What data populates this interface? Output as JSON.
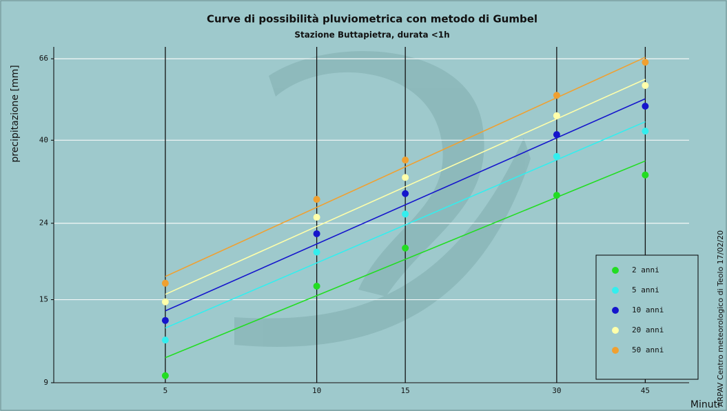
{
  "chart_data": {
    "type": "scatter",
    "title": "Curve di possibilità pluviometrica con metodo di Gumbel",
    "subtitle": "Stazione Buttapietra, durata <1h",
    "y_label": "precipitazione [mm]",
    "x_label": "Minuti",
    "credit": "ARPAV Centro meteorologico di Teolo 17/02/20",
    "x": [
      5,
      10,
      15,
      30,
      45
    ],
    "xscale": "log",
    "yscale": "log",
    "xlim": [
      3,
      55
    ],
    "ylim": [
      9,
      71
    ],
    "xticks": [
      5,
      10,
      15,
      30,
      45
    ],
    "yticks": [
      9,
      15,
      24,
      40,
      66
    ],
    "grid": true,
    "legend": "lower-right",
    "series": [
      {
        "name": "2 anni",
        "color": "#22dd22",
        "values": [
          9.4,
          16.3,
          20.6,
          28.5,
          32.3
        ],
        "trend": {
          "x": [
            5,
            45
          ],
          "values": [
            10.5,
            35.2
          ]
        }
      },
      {
        "name": "5 anni",
        "color": "#33eeee",
        "values": [
          11.7,
          20.1,
          25.4,
          36.2,
          42.3
        ],
        "trend": {
          "x": [
            5,
            45
          ],
          "values": [
            12.6,
            44.8
          ]
        }
      },
      {
        "name": "10 anni",
        "color": "#1515cc",
        "values": [
          13.2,
          22.5,
          28.8,
          41.4,
          49.3
        ],
        "trend": {
          "x": [
            5,
            45
          ],
          "values": [
            14.0,
            51.6
          ]
        }
      },
      {
        "name": "20 anni",
        "color": "#ffffaa",
        "values": [
          14.8,
          24.9,
          31.8,
          46.5,
          56.0
        ],
        "trend": {
          "x": [
            5,
            45
          ],
          "values": [
            15.5,
            58.2
          ]
        }
      },
      {
        "name": "50 anni",
        "color": "#f0a030",
        "values": [
          16.6,
          27.8,
          35.4,
          52.7,
          64.6
        ],
        "trend": {
          "x": [
            5,
            45
          ],
          "values": [
            17.3,
            66.6
          ]
        }
      }
    ]
  }
}
